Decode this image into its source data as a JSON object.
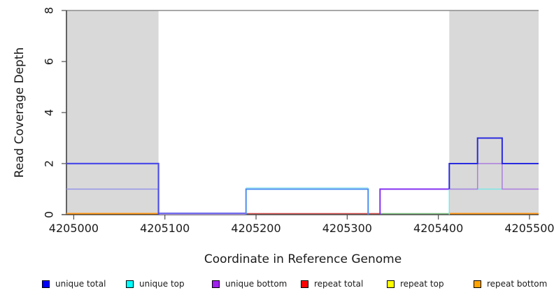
{
  "chart_data": {
    "type": "line",
    "subtype": "step-coverage-plot",
    "title": "",
    "xlabel": "Coordinate in Reference Genome",
    "ylabel": "Read Coverage Depth",
    "xlim": [
      4204992,
      4205510
    ],
    "ylim": [
      0,
      8
    ],
    "x_ticks": [
      4205000,
      4205100,
      4205200,
      4205300,
      4205400,
      4205500
    ],
    "y_ticks": [
      0,
      2,
      4,
      6,
      8
    ],
    "grid": false,
    "legend_position": "bottom",
    "colors": {
      "shaded_region": "#d9d9d9",
      "axis": "#1a1a1a",
      "tick": "#4d4d4d",
      "top_border": "#8c8c8c",
      "background": "#ffffff"
    },
    "shaded_regions": [
      {
        "name": "repeat-region-left",
        "x1": 4204992,
        "x2": 4205093
      },
      {
        "name": "repeat-region-right",
        "x1": 4205412,
        "x2": 4205510
      }
    ],
    "series_legend": [
      {
        "label": "unique total",
        "color": "#0000ff"
      },
      {
        "label": "unique top",
        "color": "#00ffff"
      },
      {
        "label": "unique bottom",
        "color": "#a020f0"
      },
      {
        "label": "repeat total",
        "color": "#ff0000"
      },
      {
        "label": "repeat top",
        "color": "#ffff00"
      },
      {
        "label": "repeat bottom",
        "color": "#ffa500"
      }
    ],
    "series": [
      {
        "name": "unique total",
        "steps": [
          {
            "x1": 4204992,
            "x2": 4205093,
            "depth": 2
          },
          {
            "x1": 4205093,
            "x2": 4205189,
            "depth": 0
          },
          {
            "x1": 4205189,
            "x2": 4205323,
            "depth": 1
          },
          {
            "x1": 4205323,
            "x2": 4205336,
            "depth": 0
          },
          {
            "x1": 4205336,
            "x2": 4205412,
            "depth": 1
          },
          {
            "x1": 4205412,
            "x2": 4205443,
            "depth": 2
          },
          {
            "x1": 4205443,
            "x2": 4205470,
            "depth": 3
          },
          {
            "x1": 4205470,
            "x2": 4205510,
            "depth": 2
          }
        ]
      },
      {
        "name": "unique top",
        "steps": [
          {
            "x1": 4204992,
            "x2": 4205093,
            "depth": 1
          },
          {
            "x1": 4205093,
            "x2": 4205189,
            "depth": 0
          },
          {
            "x1": 4205189,
            "x2": 4205323,
            "depth": 1
          },
          {
            "x1": 4205323,
            "x2": 4205412,
            "depth": 0
          },
          {
            "x1": 4205412,
            "x2": 4205510,
            "depth": 1
          }
        ]
      },
      {
        "name": "unique bottom",
        "steps": [
          {
            "x1": 4204992,
            "x2": 4205093,
            "depth": 1
          },
          {
            "x1": 4205093,
            "x2": 4205336,
            "depth": 0
          },
          {
            "x1": 4205336,
            "x2": 4205443,
            "depth": 1
          },
          {
            "x1": 4205443,
            "x2": 4205470,
            "depth": 2
          },
          {
            "x1": 4205470,
            "x2": 4205510,
            "depth": 1
          }
        ]
      },
      {
        "name": "repeat total",
        "steps": [
          {
            "x1": 4204992,
            "x2": 4205510,
            "depth": 0
          }
        ]
      },
      {
        "name": "repeat top",
        "steps": [
          {
            "x1": 4204992,
            "x2": 4205510,
            "depth": 0
          }
        ]
      },
      {
        "name": "repeat bottom",
        "steps": [
          {
            "x1": 4204992,
            "x2": 4205510,
            "depth": 0
          }
        ]
      }
    ],
    "strokes": [
      {
        "name": "repeat-bottom-zero-left",
        "color": "#ff9a1e",
        "width": 2,
        "dy": -1.5,
        "points": [
          [
            4204992,
            0
          ],
          [
            4205093,
            0
          ]
        ]
      },
      {
        "name": "repeat-bottom-zero-right",
        "color": "#ff9a1e",
        "width": 2,
        "dy": -1.5,
        "points": [
          [
            4205412,
            0
          ],
          [
            4205510,
            0
          ]
        ]
      },
      {
        "name": "zero-line-green-segment",
        "color": "#82c382",
        "width": 1.5,
        "dy": -1.5,
        "points": [
          [
            4205336,
            0
          ],
          [
            4205412,
            0
          ]
        ]
      },
      {
        "name": "repeat-total-zero",
        "color": "#d34f4f",
        "width": 1.5,
        "dy": -1.5,
        "points": [
          [
            4205189,
            0
          ],
          [
            4205336,
            0
          ]
        ]
      },
      {
        "name": "unique-bottom-zero-gap1",
        "color": "#b79fe6",
        "width": 2,
        "dy": -1,
        "points": [
          [
            4205093,
            0
          ],
          [
            4205189,
            0
          ]
        ]
      },
      {
        "name": "unique-total-zero-gap1",
        "color": "#4d4de8",
        "width": 1.5,
        "dy": -2,
        "points": [
          [
            4205093,
            0
          ],
          [
            4205189,
            0
          ]
        ]
      },
      {
        "name": "unique-bottom-left",
        "color": "#9494ea",
        "width": 1.5,
        "dy": 0,
        "points": [
          [
            4204992,
            1
          ],
          [
            4205093,
            1
          ],
          [
            4205093,
            0
          ]
        ]
      },
      {
        "name": "unique-total-left",
        "color": "#4d4de8",
        "width": 2.2,
        "dy": 0,
        "points": [
          [
            4204992,
            2
          ],
          [
            4205093,
            2
          ],
          [
            4205093,
            0
          ]
        ]
      },
      {
        "name": "unique-top-middle",
        "color": "#aef0f0",
        "width": 1.5,
        "dy": -2,
        "points": [
          [
            4205189,
            1
          ],
          [
            4205323,
            1
          ]
        ]
      },
      {
        "name": "unique-total-middle",
        "color": "#4a8ff0",
        "width": 2,
        "dy": 0,
        "points": [
          [
            4205189,
            0
          ],
          [
            4205189,
            1
          ],
          [
            4205323,
            1
          ],
          [
            4205323,
            0
          ]
        ]
      },
      {
        "name": "unique-bottom-gap2",
        "color": "#8530f0",
        "width": 2,
        "dy": 0,
        "points": [
          [
            4205336,
            0
          ],
          [
            4205336,
            1
          ],
          [
            4205412,
            1
          ]
        ]
      },
      {
        "name": "unique-top-right",
        "color": "#7ce8e8",
        "width": 1.5,
        "dy": 0,
        "points": [
          [
            4205412,
            0
          ],
          [
            4205412,
            1
          ],
          [
            4205470,
            1
          ]
        ]
      },
      {
        "name": "unique-bottom-right",
        "color": "#ab7ce0",
        "width": 1.5,
        "dy": 0,
        "points": [
          [
            4205412,
            1
          ],
          [
            4205443,
            1
          ],
          [
            4205443,
            2
          ],
          [
            4205470,
            2
          ],
          [
            4205470,
            1
          ],
          [
            4205510,
            1
          ]
        ]
      },
      {
        "name": "unique-total-right",
        "color": "#2a2ae0",
        "width": 2,
        "dy": 0,
        "points": [
          [
            4205412,
            1
          ],
          [
            4205412,
            2
          ],
          [
            4205443,
            2
          ],
          [
            4205443,
            3
          ],
          [
            4205470,
            3
          ],
          [
            4205470,
            2
          ],
          [
            4205510,
            2
          ]
        ]
      }
    ]
  }
}
